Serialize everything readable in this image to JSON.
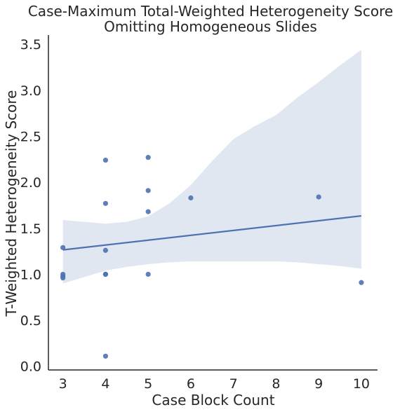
{
  "chart_data": {
    "type": "scatter",
    "title": "Case-Maximum Total-Weighted Heterogeneity Score",
    "subtitle": "Omitting Homogeneous Slides",
    "xlabel": "Case Block Count",
    "ylabel": "T-Weighted Heterogeneity Score",
    "xlim": [
      2.66,
      10.38
    ],
    "ylim": [
      -0.04,
      3.6
    ],
    "xticks": [
      3,
      4,
      5,
      6,
      7,
      8,
      9,
      10
    ],
    "yticks": [
      0.0,
      0.5,
      1.0,
      1.5,
      2.0,
      2.5,
      3.0,
      3.5
    ],
    "xtick_labels": [
      "3",
      "4",
      "5",
      "6",
      "7",
      "8",
      "9",
      "10"
    ],
    "ytick_labels": [
      "0.0",
      "0.5",
      "1.0",
      "1.5",
      "2.0",
      "2.5",
      "3.0",
      "3.5"
    ],
    "grid": false,
    "points": [
      {
        "x": 3,
        "y": 1.29
      },
      {
        "x": 3,
        "y": 1.0
      },
      {
        "x": 3,
        "y": 0.98
      },
      {
        "x": 3,
        "y": 0.96
      },
      {
        "x": 4,
        "y": 2.24
      },
      {
        "x": 4,
        "y": 1.77
      },
      {
        "x": 4,
        "y": 1.26
      },
      {
        "x": 4,
        "y": 1.0
      },
      {
        "x": 4,
        "y": 1.0
      },
      {
        "x": 4,
        "y": 0.11
      },
      {
        "x": 5,
        "y": 2.27
      },
      {
        "x": 5,
        "y": 1.91
      },
      {
        "x": 5,
        "y": 1.68
      },
      {
        "x": 5,
        "y": 1.0
      },
      {
        "x": 6,
        "y": 1.83
      },
      {
        "x": 9,
        "y": 1.84
      },
      {
        "x": 10,
        "y": 0.91
      }
    ],
    "regression": {
      "x": [
        3,
        10
      ],
      "y": [
        1.265,
        1.635
      ]
    },
    "confidence_band": {
      "x": [
        3,
        3.5,
        4,
        4.5,
        5,
        5.5,
        6,
        6.5,
        7,
        7.5,
        8,
        8.5,
        9,
        9.5,
        10
      ],
      "upper": [
        1.59,
        1.57,
        1.55,
        1.57,
        1.63,
        1.77,
        1.97,
        2.23,
        2.47,
        2.61,
        2.73,
        2.92,
        3.09,
        3.27,
        3.44
      ],
      "lower": [
        0.9,
        0.97,
        1.04,
        1.08,
        1.11,
        1.13,
        1.14,
        1.14,
        1.14,
        1.14,
        1.14,
        1.13,
        1.11,
        1.09,
        1.06
      ]
    },
    "colors": {
      "point": "#4c72b0",
      "line": "#4c72b0",
      "band": "#e1e7f1",
      "axis": "#262626"
    }
  }
}
